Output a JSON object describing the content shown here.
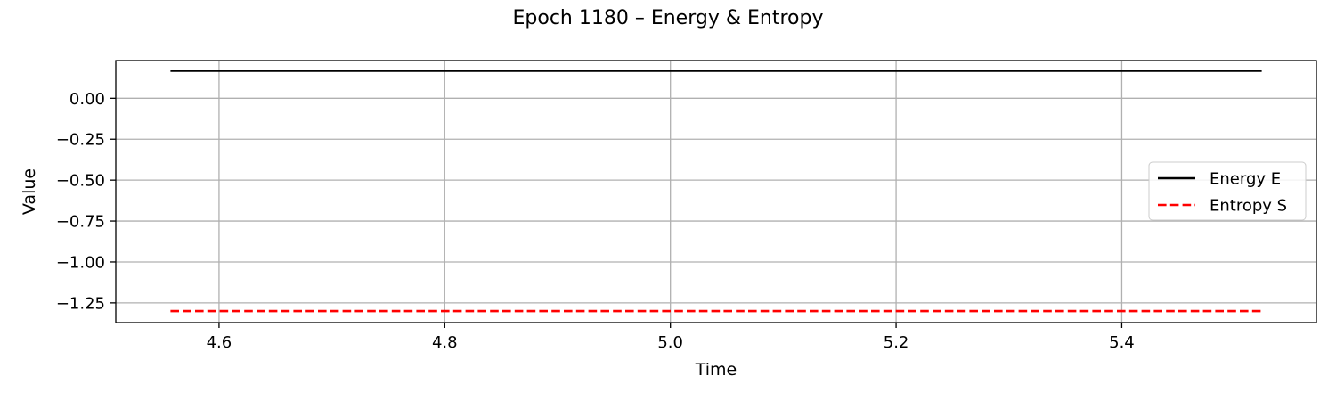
{
  "chart_data": {
    "type": "line",
    "title": "Epoch 1180 – Energy & Entropy",
    "xlabel": "Time",
    "ylabel": "Value",
    "xlim": [
      4.5085,
      5.5725
    ],
    "ylim": [
      -1.3705,
      0.2305
    ],
    "xticks": [
      4.6,
      4.8,
      5.0,
      5.2,
      5.4
    ],
    "xtick_labels": [
      "4.6",
      "4.8",
      "5.0",
      "5.2",
      "5.4"
    ],
    "yticks": [
      0.0,
      -0.25,
      -0.5,
      -0.75,
      -1.0,
      -1.25
    ],
    "ytick_labels": [
      "0.00",
      "−0.25",
      "−0.50",
      "−0.75",
      "−1.00",
      "−1.25"
    ],
    "grid": true,
    "legend_position": "center-right",
    "series": [
      {
        "name": "Energy E",
        "color": "#000000",
        "style": "solid",
        "x": [
          4.557,
          5.524
        ],
        "y": [
          0.168,
          0.168
        ]
      },
      {
        "name": "Entropy S",
        "color": "#ff0000",
        "style": "dashed",
        "x": [
          4.557,
          5.524
        ],
        "y": [
          -1.3,
          -1.3
        ]
      }
    ]
  }
}
